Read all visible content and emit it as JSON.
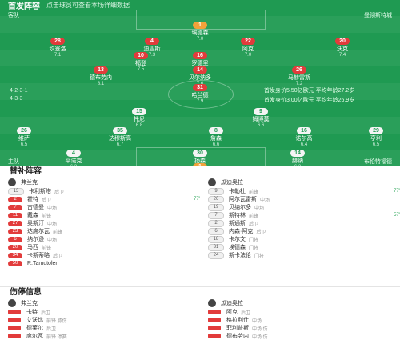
{
  "header": {
    "title": "首发阵容",
    "subtitle": "点击球员可查看本场详细数据"
  },
  "teams": {
    "home_label": "主队",
    "away_label": "客队",
    "home_formation": "4-2-3-1",
    "away_formation": "4-3-3",
    "home_side": "布伦特福德",
    "away_side": "曼彻斯特城"
  },
  "center_info": {
    "line1": "首发身价3.00亿欧元 平均年龄26.9岁",
    "line2": "首发身价5.50亿欧元 平均年龄27.2岁"
  },
  "away_players": [
    {
      "num": "1",
      "name": "埃德森",
      "stat": "7.0",
      "color": "orange"
    },
    {
      "num": "28",
      "name": "坎塞洛",
      "stat": "7.1",
      "color": "red"
    },
    {
      "num": "4",
      "name": "迪亚斯",
      "stat": "7.3",
      "color": "red"
    },
    {
      "num": "22",
      "name": "阿克",
      "stat": "7.0",
      "color": "red"
    },
    {
      "num": "20",
      "name": "沃克",
      "stat": "7.4",
      "color": "red"
    },
    {
      "num": "16",
      "name": "罗德里",
      "stat": "7.5",
      "color": "red"
    },
    {
      "num": "13",
      "name": "德布劳内",
      "stat": "8.1",
      "color": "red"
    },
    {
      "num": "14",
      "name": "贝尔纳多",
      "stat": "7.6",
      "color": "red"
    },
    {
      "num": "26",
      "name": "马赫雷斯",
      "stat": "7.2",
      "color": "red"
    },
    {
      "num": "31",
      "name": "哈兰德",
      "stat": "7.9",
      "color": "red"
    },
    {
      "num": "10",
      "name": "福登",
      "stat": "7.5",
      "color": "red"
    }
  ],
  "home_players": [
    {
      "num": "15",
      "name": "托尼",
      "stat": "6.8",
      "color": "white"
    },
    {
      "num": "9",
      "name": "姆博莫",
      "stat": "6.6",
      "color": "white"
    },
    {
      "num": "26",
      "name": "维萨",
      "stat": "6.5",
      "color": "white"
    },
    {
      "num": "35",
      "name": "达穆斯高",
      "stat": "6.7",
      "color": "white"
    },
    {
      "num": "8",
      "name": "詹森",
      "stat": "6.6",
      "color": "white"
    },
    {
      "num": "16",
      "name": "诺尔高",
      "stat": "6.4",
      "color": "white"
    },
    {
      "num": "29",
      "name": "亨利",
      "stat": "6.5",
      "color": "white"
    },
    {
      "num": "4",
      "name": "平诺克",
      "stat": "6.3",
      "color": "white"
    },
    {
      "num": "30",
      "name": "扬森",
      "stat": "6.4",
      "color": "white"
    },
    {
      "num": "14",
      "name": "赫纳",
      "stat": "6.2",
      "color": "white"
    },
    {
      "num": "1",
      "name": "拉亚",
      "stat": "7.1",
      "color": "orange"
    }
  ],
  "subs": {
    "title": "替补阵容",
    "home_coach": "弗兰克",
    "away_coach": "瓜迪奥拉",
    "home": [
      {
        "num": "13",
        "name": "卡利斯塔",
        "pos": "后卫",
        "time": "",
        "red": false
      },
      {
        "num": "2",
        "name": "霍特",
        "pos": "后卫",
        "time": "77'",
        "red": true
      },
      {
        "num": "7",
        "name": "古德曼",
        "pos": "中场",
        "time": "",
        "red": true
      },
      {
        "num": "11",
        "name": "戴森",
        "pos": "前锋",
        "time": "",
        "red": true
      },
      {
        "num": "27",
        "name": "奥斯汀",
        "pos": "中场",
        "time": "",
        "red": true
      },
      {
        "num": "23",
        "name": "达席尔瓦",
        "pos": "前锋",
        "time": "",
        "red": true
      },
      {
        "num": "6",
        "name": "纳尔逊",
        "pos": "中场",
        "time": "",
        "red": true
      },
      {
        "num": "20",
        "name": "马西",
        "pos": "前锋",
        "time": "",
        "red": true
      },
      {
        "num": "34",
        "name": "卡斯蒂略",
        "pos": "后卫",
        "time": "",
        "red": true
      },
      {
        "num": "50",
        "name": "R.Tamutoler",
        "pos": "",
        "time": "",
        "red": true
      }
    ],
    "away": [
      {
        "num": "9",
        "name": "卡勒杜",
        "pos": "前锋",
        "time": "77'",
        "red": false
      },
      {
        "num": "26",
        "name": "阿尔瓦雷斯",
        "pos": "中场",
        "time": "",
        "red": false
      },
      {
        "num": "19",
        "name": "贝纳尔多",
        "pos": "中场",
        "time": "",
        "red": false
      },
      {
        "num": "7",
        "name": "斯特林",
        "pos": "前锋",
        "time": "57'",
        "red": false
      },
      {
        "num": "2",
        "name": "斯通斯",
        "pos": "后卫",
        "time": "",
        "red": false
      },
      {
        "num": "6",
        "name": "内森·阿克",
        "pos": "后卫",
        "time": "",
        "red": false
      },
      {
        "num": "18",
        "name": "卡尔文",
        "pos": "门将",
        "time": "",
        "red": false
      },
      {
        "num": "31",
        "name": "埃德森",
        "pos": "门将",
        "time": "",
        "red": false
      },
      {
        "num": "24",
        "name": "斯卡法伦",
        "pos": "门将",
        "time": "",
        "red": false
      }
    ]
  },
  "injuries": {
    "title": "伤停信息",
    "home_coach": "弗兰克",
    "away_coach": "瓜迪奥拉",
    "home": [
      {
        "name": "卡特",
        "pos": "后卫"
      },
      {
        "name": "艾沃比",
        "pos": "前锋 膝伤"
      },
      {
        "name": "德莱尔",
        "pos": "后卫"
      },
      {
        "name": "席尔瓦",
        "pos": "前锋 停赛"
      }
    ],
    "away": [
      {
        "name": "阿克",
        "pos": "后卫"
      },
      {
        "name": "格拉利什",
        "pos": "中场"
      },
      {
        "name": "菲利普斯",
        "pos": "中场 伤"
      },
      {
        "name": "德布劳内",
        "pos": "中场 伤"
      }
    ]
  }
}
